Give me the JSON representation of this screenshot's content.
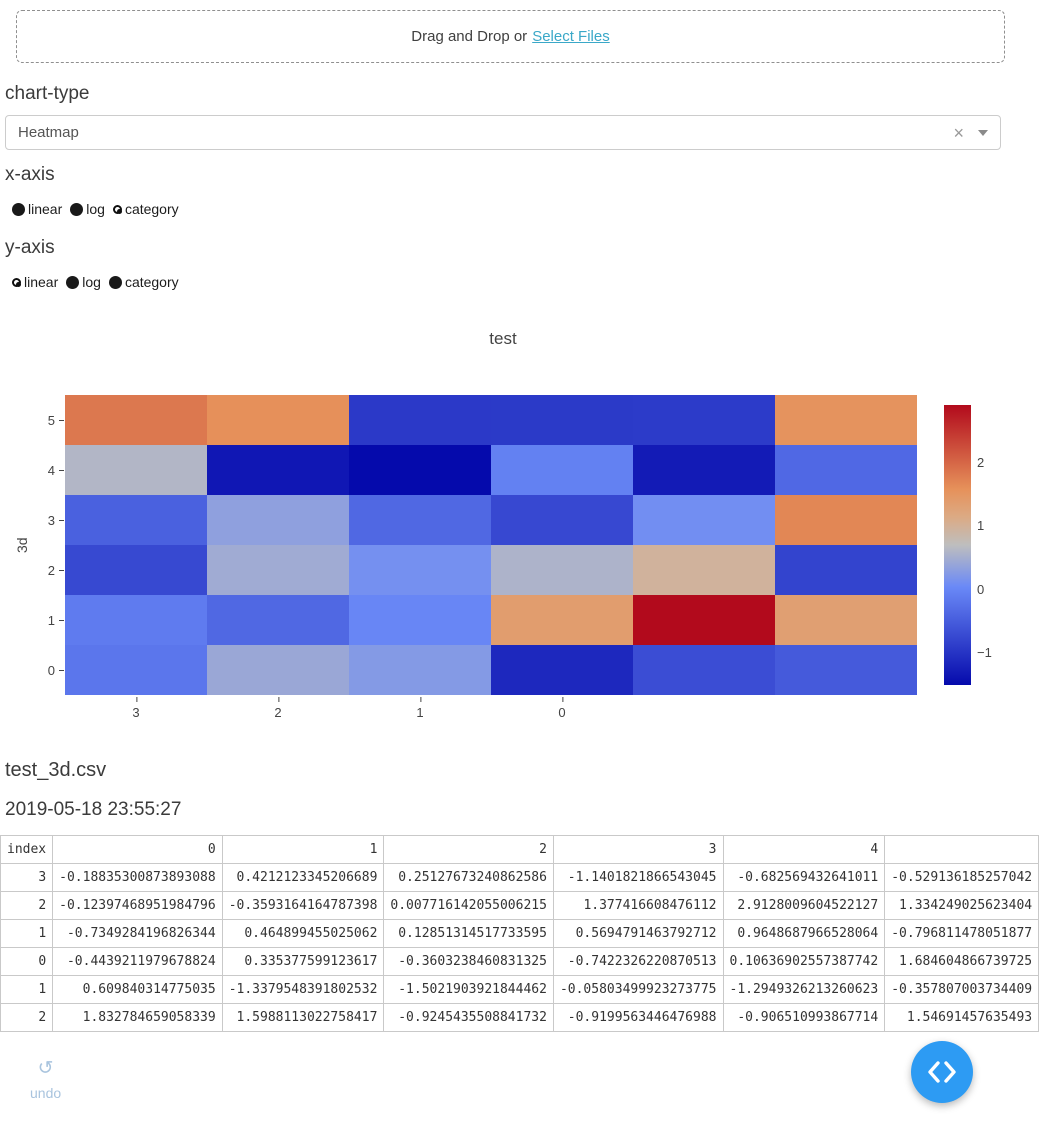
{
  "upload": {
    "prefix": "Drag and Drop or",
    "link_label": "Select Files"
  },
  "chart_type": {
    "heading": "chart-type",
    "selected": "Heatmap"
  },
  "axes": {
    "x": {
      "heading": "x-axis",
      "options": [
        "linear",
        "log",
        "category"
      ],
      "selected": "category"
    },
    "y": {
      "heading": "y-axis",
      "options": [
        "linear",
        "log",
        "category"
      ],
      "selected": "linear"
    }
  },
  "chart_data": {
    "type": "heatmap",
    "title": "test",
    "ylabel": "3d",
    "x_tick_labels": [
      "3",
      "2",
      "1",
      "0"
    ],
    "y_tick_labels": [
      "5",
      "4",
      "3",
      "2",
      "1",
      "0"
    ],
    "n_cols": 6,
    "n_rows": 6,
    "zmin": -1.5021903921844462,
    "zmax": 2.9128009604522127,
    "z_row_order": "top-to-bottom (y=5 .. y=0)",
    "z": [
      [
        1.832784659058339,
        1.5988113022758417,
        -0.9245435508841732,
        -0.9199563446476988,
        -0.906510993867714,
        1.54691457635493
      ],
      [
        0.609840314775035,
        -1.3379548391802532,
        -1.5021903921844462,
        -0.05803499923273775,
        -1.2949326213260623,
        -0.357807003734409
      ],
      [
        -0.4439211979678824,
        0.335377599123617,
        -0.3603238460831325,
        -0.7422326220870513,
        0.10636902557387742,
        1.684604866739725
      ],
      [
        -0.7349284196826344,
        0.464899455025062,
        0.12851314517733595,
        0.5694791463792712,
        0.9648687966528064,
        -0.796811478051877
      ],
      [
        -0.12397468951984796,
        -0.3593164164787398,
        0.007716142055006215,
        1.377416608476112,
        2.9128009604522127,
        1.334249025623404
      ],
      [
        -0.18835300873893088,
        0.4212123345206689,
        0.25127673240862586,
        -1.1401821866543045,
        -0.682569432641011,
        -0.529136185257042
      ]
    ],
    "colorscale": [
      [
        0,
        "rgb(5,10,172)"
      ],
      [
        0.35,
        "rgb(106,137,247)"
      ],
      [
        0.5,
        "rgb(190,190,190)"
      ],
      [
        0.6,
        "rgb(220,170,132)"
      ],
      [
        0.7,
        "rgb(230,145,90)"
      ],
      [
        1,
        "rgb(178,10,28)"
      ]
    ],
    "colorbar_ticks": [
      {
        "value": 2,
        "label": "2"
      },
      {
        "value": 1,
        "label": "1"
      },
      {
        "value": 0,
        "label": "0"
      },
      {
        "value": -1,
        "label": "−1"
      }
    ]
  },
  "file_info": {
    "name": "test_3d.csv",
    "timestamp": "2019-05-18 23:55:27"
  },
  "table": {
    "headers": [
      "index",
      "0",
      "1",
      "2",
      "3",
      "4",
      ""
    ],
    "rows": [
      [
        "3",
        "-0.18835300873893088",
        "0.4212123345206689",
        "0.25127673240862586",
        "-1.1401821866543045",
        "-0.682569432641011",
        "-0.529136185257042"
      ],
      [
        "2",
        "-0.12397468951984796",
        "-0.3593164164787398",
        "0.007716142055006215",
        "1.377416608476112",
        "2.9128009604522127",
        "1.334249025623404"
      ],
      [
        "1",
        "-0.7349284196826344",
        "0.464899455025062",
        "0.12851314517733595",
        "0.5694791463792712",
        "0.9648687966528064",
        "-0.796811478051877"
      ],
      [
        "0",
        "-0.4439211979678824",
        "0.335377599123617",
        "-0.3603238460831325",
        "-0.7422326220870513",
        "0.10636902557387742",
        "1.684604866739725"
      ],
      [
        "1",
        "0.609840314775035",
        "-1.3379548391802532",
        "-1.5021903921844462",
        "-0.05803499923273775",
        "-1.2949326213260623",
        "-0.357807003734409"
      ],
      [
        "2",
        "1.832784659058339",
        "1.5988113022758417",
        "-0.9245435508841732",
        "-0.9199563446476988",
        "-0.906510993867714",
        "1.54691457635493"
      ]
    ]
  },
  "undo": {
    "label": "undo"
  },
  "icons": {
    "clear": "×",
    "undo": "↺"
  },
  "colors": {
    "accent_link": "#3aa8c8",
    "fab_blue": "#2d9bf3",
    "undo_muted": "#a9c4de"
  }
}
